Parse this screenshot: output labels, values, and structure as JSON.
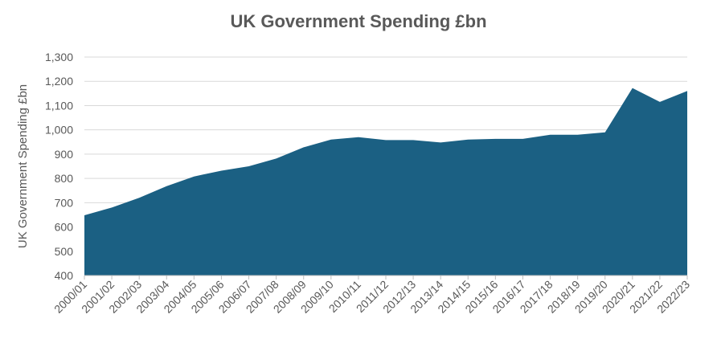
{
  "chart_data": {
    "type": "area",
    "title": "UK Government Spending £bn",
    "xlabel": "",
    "ylabel": "UK Government Spending £bn",
    "ylim": [
      400,
      1300
    ],
    "yticks": [
      400,
      500,
      600,
      700,
      800,
      900,
      1000,
      1100,
      1200,
      1300
    ],
    "ytick_labels": [
      "400",
      "500",
      "600",
      "700",
      "800",
      "900",
      "1,000",
      "1,100",
      "1,200",
      "1,300"
    ],
    "categories": [
      "2000/01",
      "2001/02",
      "2002/03",
      "2003/04",
      "2004/05",
      "2005/06",
      "2006/07",
      "2007/08",
      "2008/09",
      "2009/10",
      "2010/11",
      "2011/12",
      "2012/13",
      "2013/14",
      "2014/15",
      "2015/16",
      "2016/17",
      "2017/18",
      "2018/19",
      "2019/20",
      "2020/21",
      "2021/22",
      "2022/23"
    ],
    "values": [
      648,
      680,
      720,
      768,
      808,
      832,
      850,
      882,
      928,
      960,
      970,
      958,
      958,
      948,
      960,
      963,
      963,
      980,
      980,
      990,
      1172,
      1115,
      1160
    ],
    "grid": true,
    "colors": {
      "area": "#1b6083",
      "grid": "#d9d9d9",
      "text": "#595959"
    }
  }
}
